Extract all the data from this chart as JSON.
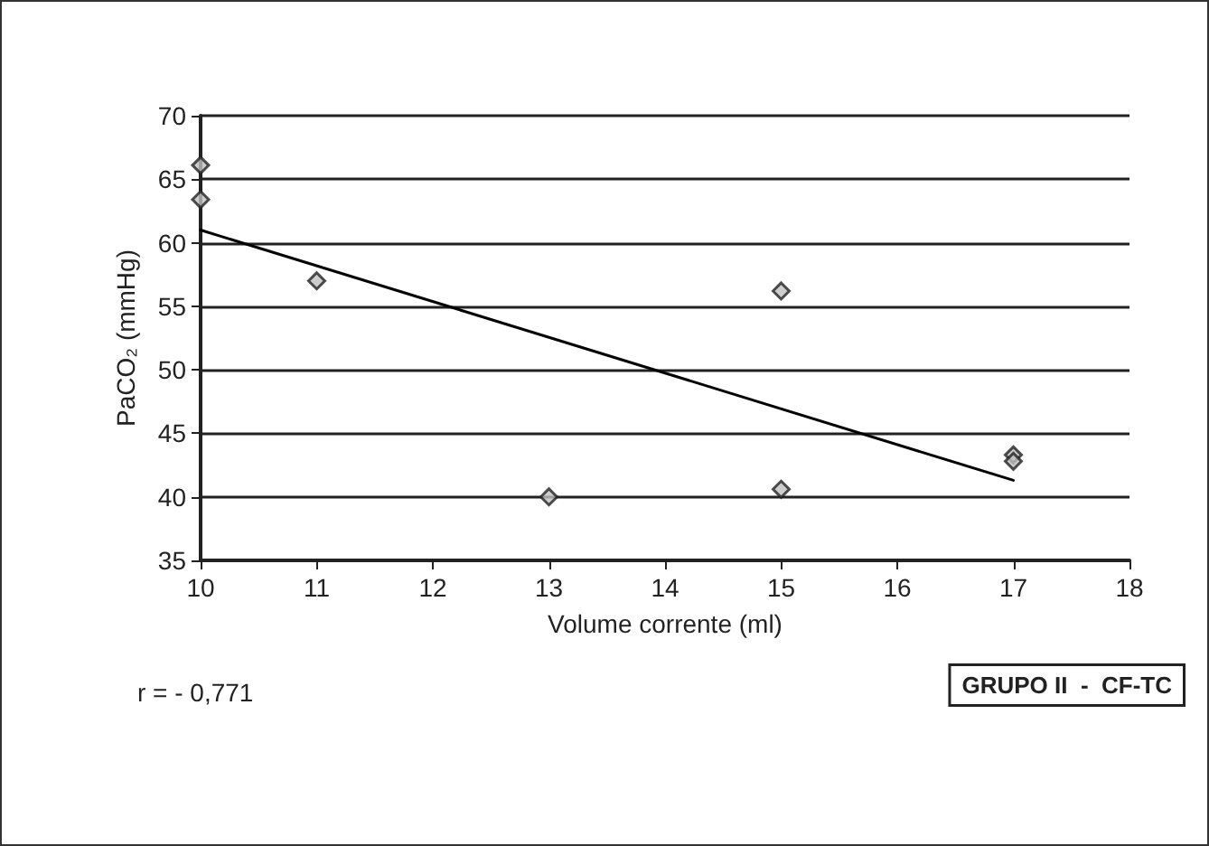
{
  "chart_data": {
    "type": "scatter",
    "xlabel": "Volume corrente (ml)",
    "ylabel": "PaCO₂ (mmHg)",
    "xlim": [
      10,
      18
    ],
    "xticks": [
      10,
      11,
      12,
      13,
      14,
      15,
      16,
      17,
      18
    ],
    "ylim": [
      35,
      70
    ],
    "yticks": [
      35,
      40,
      45,
      50,
      55,
      60,
      65,
      70
    ],
    "grid": "y",
    "series": [
      {
        "marker": "diamond",
        "color": "#c0c0c0",
        "x": [
          10,
          10,
          11,
          13,
          15,
          15,
          17,
          17
        ],
        "values": [
          66.1,
          63.4,
          57,
          40,
          56.2,
          40.6,
          43.3,
          42.8
        ]
      },
      {
        "type": "line",
        "marker": "none",
        "color": "#000000",
        "x": [
          10,
          17
        ],
        "values": [
          61,
          41.3
        ]
      }
    ],
    "annotations": [
      "r = - 0,771",
      "GRUPO II  -  CF-TC"
    ]
  }
}
